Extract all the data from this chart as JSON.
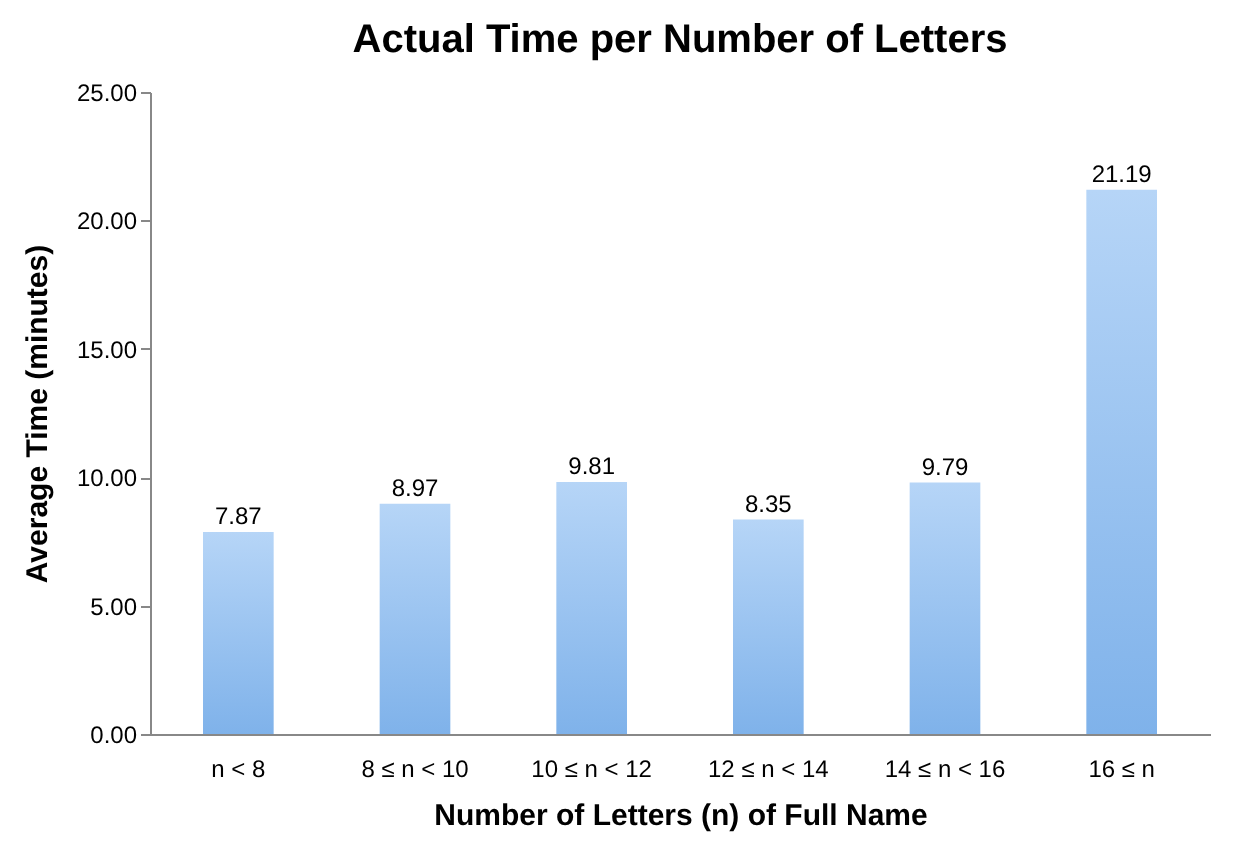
{
  "chart_data": {
    "type": "bar",
    "title": "Actual Time per Number of Letters",
    "xlabel": "Number of Letters (n) of Full Name",
    "ylabel": "Average Time (minutes)",
    "categories": [
      "n < 8",
      "8 ≤ n < 10",
      "10 ≤ n < 12",
      "12 ≤ n < 14",
      "14 ≤ n < 16",
      "16 ≤ n"
    ],
    "values": [
      7.87,
      8.97,
      9.81,
      8.35,
      9.79,
      21.19
    ],
    "color": "#7fb2ea",
    "ylim": [
      0,
      25
    ],
    "yticks": [
      {
        "value": 0,
        "label": "0.00"
      },
      {
        "value": 5,
        "label": "5.00"
      },
      {
        "value": 10,
        "label": "10.00"
      },
      {
        "value": 15,
        "label": "15.00"
      },
      {
        "value": 20,
        "label": "20.00"
      },
      {
        "value": 25,
        "label": "25.00"
      }
    ],
    "grid": false,
    "data_labels": true
  }
}
